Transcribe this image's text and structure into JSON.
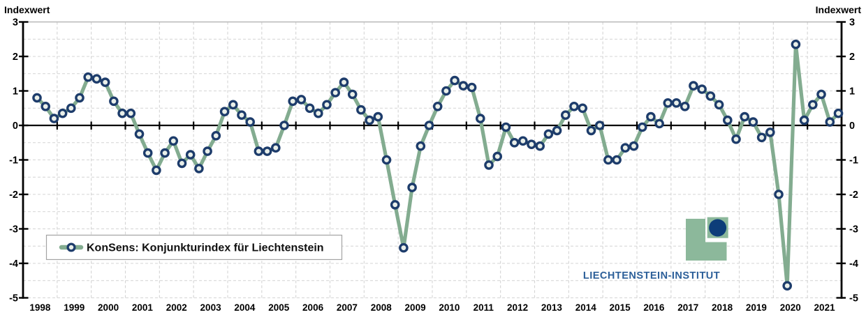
{
  "chart_data": {
    "type": "line",
    "title": "",
    "ylabel_left": "Indexwert",
    "ylabel_right": "Indexwert",
    "ylim": [
      -5,
      3
    ],
    "y_ticks": [
      3,
      2,
      1,
      0,
      -1,
      -2,
      -3,
      -4,
      -5
    ],
    "grid": "dashed minor gridlines every 0.5 units, solid black zero line",
    "legend_position": "bottom-left inside plot",
    "years": [
      1998,
      1999,
      2000,
      2001,
      2002,
      2003,
      2004,
      2005,
      2006,
      2007,
      2008,
      2009,
      2010,
      2011,
      2012,
      2013,
      2014,
      2015,
      2016,
      2017,
      2018,
      2019,
      2020,
      2021
    ],
    "frequency": "quarterly",
    "legend": {
      "label": "KonSens: Konjunkturindex für Liechtenstein"
    },
    "series": [
      {
        "name": "KonSens: Konjunkturindex für Liechtenstein",
        "values": [
          0.8,
          0.55,
          0.2,
          0.35,
          0.5,
          0.8,
          1.4,
          1.35,
          1.25,
          0.7,
          0.35,
          0.35,
          -0.25,
          -0.8,
          -1.3,
          -0.8,
          -0.45,
          -1.1,
          -0.85,
          -1.25,
          -0.75,
          -0.3,
          0.4,
          0.6,
          0.3,
          0.1,
          -0.75,
          -0.75,
          -0.65,
          0.0,
          0.7,
          0.75,
          0.5,
          0.35,
          0.6,
          0.95,
          1.25,
          0.9,
          0.45,
          0.15,
          0.25,
          -1.0,
          -2.3,
          -3.55,
          -1.8,
          -0.6,
          0.0,
          0.55,
          1.0,
          1.3,
          1.15,
          1.1,
          0.2,
          -1.15,
          -0.9,
          -0.05,
          -0.5,
          -0.45,
          -0.55,
          -0.6,
          -0.25,
          -0.15,
          0.3,
          0.55,
          0.5,
          -0.15,
          0.0,
          -1.0,
          -1.0,
          -0.65,
          -0.6,
          -0.05,
          0.25,
          0.05,
          0.65,
          0.65,
          0.55,
          1.15,
          1.05,
          0.85,
          0.6,
          0.15,
          -0.4,
          0.25,
          0.1,
          -0.35,
          -0.2,
          -2.0,
          -4.65,
          2.35,
          0.15,
          0.6,
          0.9,
          0.1,
          0.35
        ]
      }
    ]
  },
  "branding": {
    "logo_text": "LIECHTENSTEIN-INSTITUT"
  },
  "colors": {
    "series_green": "#83ac90",
    "marker_ring_navy": "#1d3c6b",
    "marker_fill": "#e9efe9",
    "grid_gray": "#d4d4d4",
    "frame_gray": "#b8b8b8",
    "axis_black": "#000000",
    "logo_green": "#8cb89b",
    "logo_navy": "#0d3d79",
    "logo_text_blue": "#2c5f99"
  }
}
